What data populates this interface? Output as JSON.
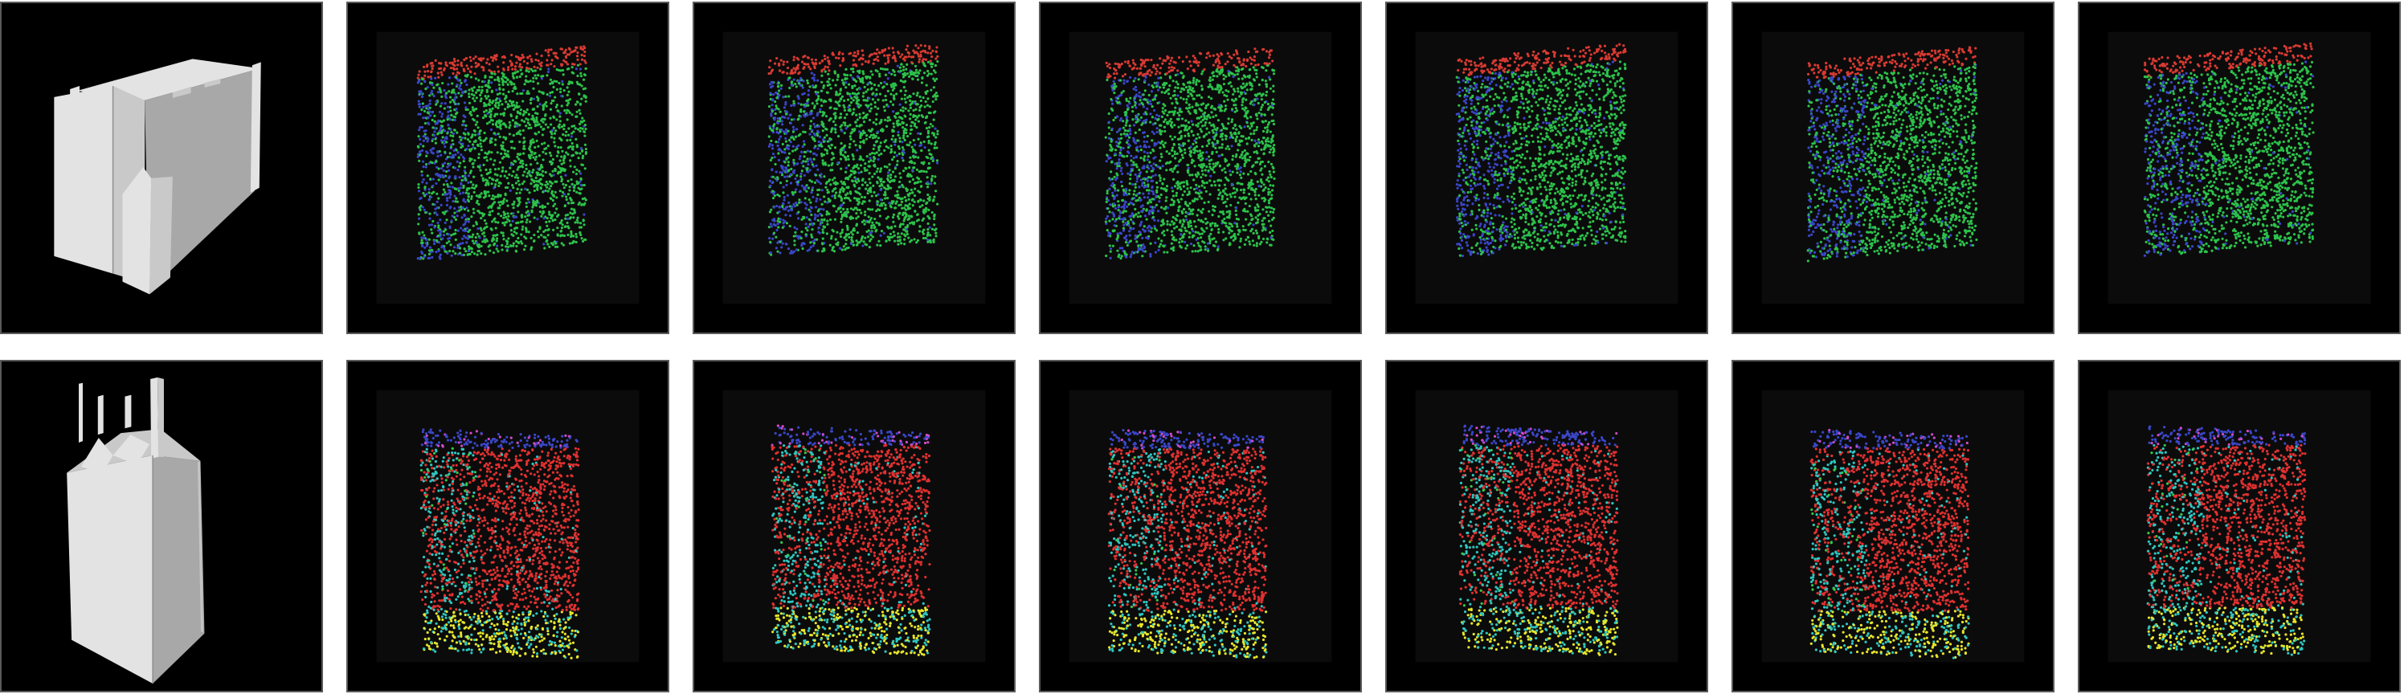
{
  "figure": {
    "rows": [
      {
        "mesh": "building-a",
        "palette": [
          "#2cc24a",
          "#3a46c8",
          "#d83a32"
        ],
        "panels": [
          {
            "type": "mesh"
          },
          {
            "type": "pointcloud"
          },
          {
            "type": "pointcloud"
          },
          {
            "type": "pointcloud"
          },
          {
            "type": "pointcloud"
          },
          {
            "type": "pointcloud"
          },
          {
            "type": "pointcloud"
          }
        ]
      },
      {
        "mesh": "building-b",
        "palette": [
          "#e03030",
          "#2fc6c0",
          "#3a46c8",
          "#e6e62a",
          "#d04ac8",
          "#36c84a"
        ],
        "panels": [
          {
            "type": "mesh"
          },
          {
            "type": "pointcloud"
          },
          {
            "type": "pointcloud"
          },
          {
            "type": "pointcloud"
          },
          {
            "type": "pointcloud"
          },
          {
            "type": "pointcloud"
          },
          {
            "type": "pointcloud"
          }
        ]
      }
    ],
    "colors": {
      "panel_bg": "#000000",
      "inner_bg": "#0b0b0b",
      "border": "#5a5a5a",
      "mesh_light": "#e3e3e3",
      "mesh_mid": "#c9c9c9",
      "mesh_dark": "#a8a8a8"
    }
  }
}
